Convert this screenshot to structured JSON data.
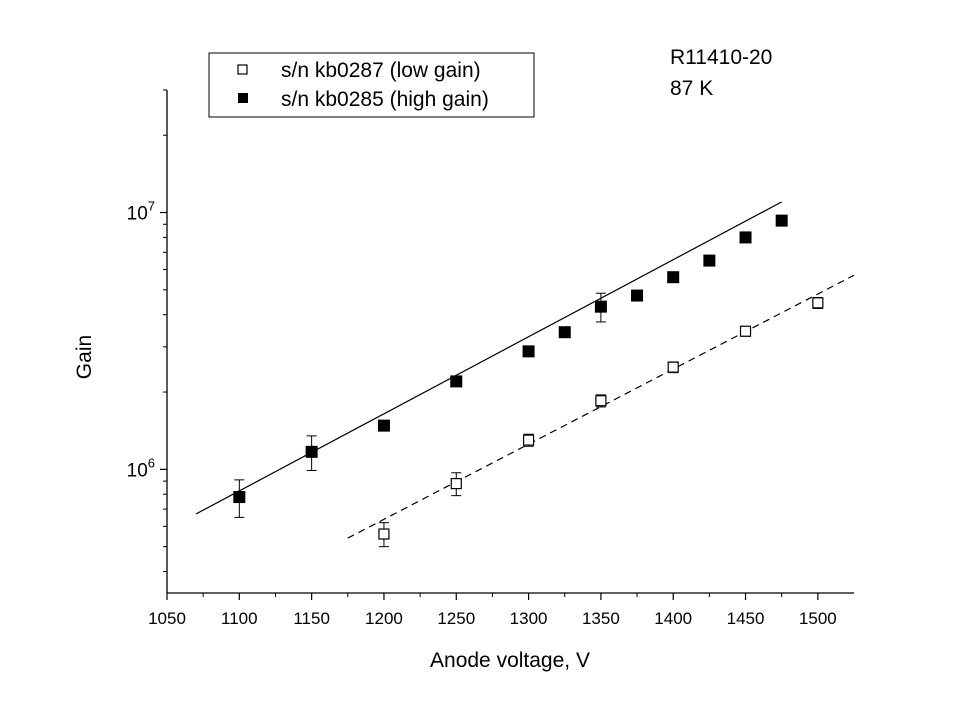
{
  "chart_data": {
    "type": "scatter",
    "xlabel": "Anode voltage, V",
    "ylabel": "Gain",
    "xlim": [
      1050,
      1525
    ],
    "ylim": [
      330000,
      30000000
    ],
    "yscale": "log",
    "x_ticks": [
      1050,
      1100,
      1150,
      1200,
      1250,
      1300,
      1350,
      1400,
      1450,
      1500
    ],
    "y_ticks": [
      {
        "value": 1000000,
        "base": "10",
        "exponent": "6"
      },
      {
        "value": 10000000,
        "base": "10",
        "exponent": "7"
      }
    ],
    "annotations": [
      "R11410-20",
      "87 K"
    ],
    "legend": {
      "placement": "top-left"
    },
    "grid": false,
    "series": [
      {
        "name": "s/n kb0287 (low gain)",
        "marker": "open-square",
        "x": [
          1200,
          1250,
          1300,
          1350,
          1400,
          1450,
          1500
        ],
        "y": [
          560000,
          880000,
          1300000,
          1850000,
          2500000,
          3450000,
          4450000
        ],
        "yerr": [
          60000,
          90000,
          70000,
          100000,
          120000,
          150000,
          220000
        ],
        "fit": {
          "style": "dashed",
          "x_range": [
            1175,
            1525
          ],
          "y_range": [
            540000,
            5700000
          ]
        }
      },
      {
        "name": "s/n kb0285 (high gain)",
        "marker": "filled-square",
        "x": [
          1100,
          1150,
          1200,
          1250,
          1300,
          1325,
          1350,
          1375,
          1400,
          1425,
          1450,
          1475
        ],
        "y": [
          780000,
          1170000,
          1480000,
          2200000,
          2880000,
          3420000,
          4300000,
          4750000,
          5600000,
          6500000,
          8000000,
          9300000
        ],
        "yerr": [
          130000,
          180000,
          0,
          0,
          0,
          0,
          550000,
          0,
          0,
          0,
          0,
          0
        ],
        "fit": {
          "style": "solid",
          "x_range": [
            1070,
            1475
          ],
          "y_range": [
            670000,
            11000000
          ]
        }
      }
    ]
  }
}
